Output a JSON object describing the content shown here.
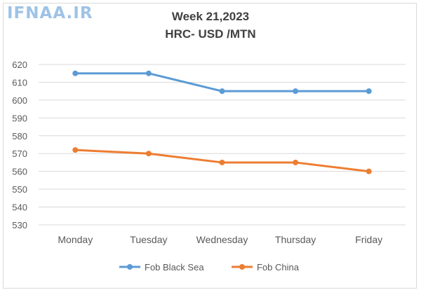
{
  "watermark": "IFNAA.IR",
  "chart_data": {
    "type": "line",
    "title": "Week 21,2023",
    "subtitle": "HRC- USD /MTN",
    "categories": [
      "Monday",
      "Tuesday",
      "Wednesday",
      "Thursday",
      "Friday"
    ],
    "series": [
      {
        "name": "Fob Black Sea",
        "color": "#5b9bd5",
        "values": [
          615,
          615,
          605,
          605,
          605
        ]
      },
      {
        "name": "Fob China",
        "color": "#ed7d31",
        "values": [
          572,
          570,
          565,
          565,
          560
        ]
      }
    ],
    "ylim": [
      530,
      620
    ],
    "yticks": [
      530,
      540,
      550,
      560,
      570,
      580,
      590,
      600,
      610,
      620
    ],
    "grid": true,
    "legend": "bottom"
  }
}
